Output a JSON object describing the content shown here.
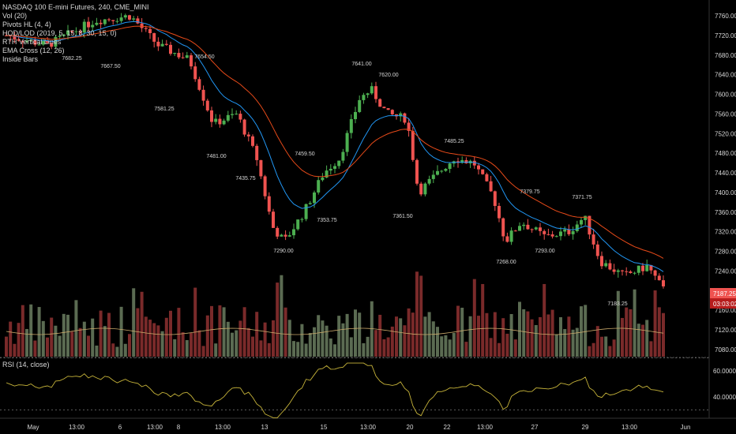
{
  "header": {
    "title": "NASDAQ 100 E-mini Futures, 240, CME_MINI",
    "indicators": [
      "Vol (20)",
      "Pivots HL (4, 4)",
      "HOD/LOD (2019, 5, 15, 8, 30, 15, 0)",
      "RTH Vertical Lines",
      "EMA Cross (12, 26)",
      "Inside Bars"
    ]
  },
  "rsi_label": "RSI (14, close)",
  "colors": {
    "background": "#000000",
    "up": "#4caf50",
    "down": "#ef5350",
    "vol_up": "#5b6b52",
    "vol_down": "#7a2a2a",
    "ema_fast": "#2196f3",
    "ema_slow": "#e64a19",
    "rsi_line": "#c8b53a",
    "price_tag": "#ef5350"
  },
  "chart_data": [
    {
      "type": "candlestick",
      "title": "NASDAQ 100 E-mini Futures, 240, CME_MINI",
      "y_ticks": [
        7760,
        7720,
        7680,
        7640,
        7600,
        7560,
        7520,
        7480,
        7440,
        7400,
        7360,
        7320,
        7280,
        7240,
        7200,
        7160,
        7120,
        7080
      ],
      "x_ticks": [
        "May",
        "13:00",
        "6",
        "13:00",
        "8",
        "13:00",
        "13",
        "15",
        "13:00",
        "20",
        "22",
        "13:00",
        "27",
        "29",
        "13:00",
        "Jun"
      ],
      "last_price": "7187.25",
      "countdown": "03:03:02",
      "pivot_labels": [
        "7682.25",
        "7667.50",
        "7654.50",
        "7581.25",
        "7481.00",
        "7435.75",
        "7459.50",
        "7290.00",
        "7353.75",
        "7641.00",
        "7620.00",
        "7361.50",
        "7485.25",
        "7268.00",
        "7379.75",
        "7293.00",
        "7371.75",
        "7183.25"
      ],
      "series": [
        {
          "name": "EMA 12"
        },
        {
          "name": "EMA 26"
        }
      ]
    },
    {
      "type": "line",
      "title": "RSI (14, close)",
      "y_ticks": [
        "60.0000",
        "40.0000"
      ]
    }
  ]
}
